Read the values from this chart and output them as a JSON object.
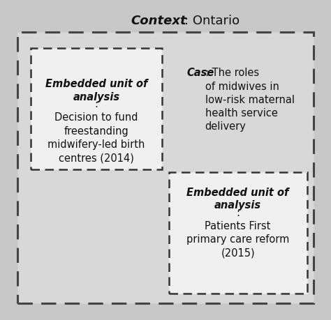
{
  "background_color": "#c8c8c8",
  "outer_box_facecolor": "#d8d8d8",
  "inner_embedded_color": "#f0f0f0",
  "dashed_color": "#333333",
  "solid_color": "#444444",
  "text_color": "#111111",
  "context_bold": "Context",
  "context_normal": ": Ontario",
  "box1_bold": "Embedded unit of\nanalysis",
  "box1_normal": ":\nDecision to fund\nfreestanding\nmidwifery-led birth\ncentres (2014)",
  "case_bold": "Case",
  "case_normal": ": The roles\nof midwives in\nlow-risk maternal\nhealth service\ndelivery",
  "box2_bold": "Embedded unit of\nanalysis",
  "box2_normal": ":\nPatients First\nprimary care reform\n(2015)",
  "font_size_title": 13,
  "font_size_box": 10.5
}
